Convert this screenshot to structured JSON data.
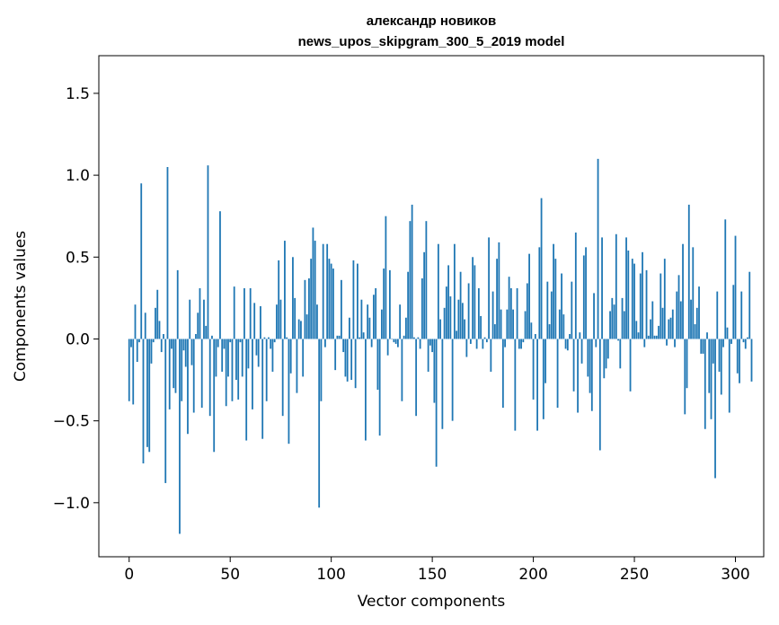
{
  "chart_data": {
    "type": "bar",
    "title": "александр новиков",
    "subtitle": "news_upos_skipgram_300_5_2019 model",
    "xlabel": "Vector components",
    "ylabel": "Components values",
    "xlim": [
      -15,
      314
    ],
    "ylim": [
      -1.33,
      1.73
    ],
    "xticks": [
      0,
      50,
      100,
      150,
      200,
      250,
      300
    ],
    "xtick_labels": [
      "0",
      "50",
      "100",
      "150",
      "200",
      "250",
      "300"
    ],
    "yticks": [
      -1.0,
      -0.5,
      0.0,
      0.5,
      1.0,
      1.5
    ],
    "ytick_labels": [
      "−1.0",
      "−0.5",
      "0.0",
      "0.5",
      "1.0",
      "1.5"
    ],
    "bar_color": "#1f77b4",
    "grid": false,
    "legend": "none",
    "values": [
      -0.38,
      -0.05,
      -0.4,
      0.21,
      -0.14,
      -0.02,
      0.95,
      -0.76,
      0.16,
      -0.66,
      -0.69,
      -0.15,
      -0.02,
      0.19,
      0.3,
      0.11,
      -0.08,
      0.03,
      -0.88,
      1.05,
      -0.43,
      -0.06,
      -0.3,
      -0.33,
      0.42,
      -1.19,
      -0.38,
      -0.07,
      -0.17,
      -0.58,
      0.24,
      -0.16,
      -0.45,
      0.03,
      0.16,
      0.31,
      -0.42,
      0.24,
      0.08,
      1.06,
      -0.47,
      0.02,
      -0.69,
      -0.23,
      -0.05,
      0.78,
      -0.2,
      -0.06,
      -0.41,
      -0.23,
      -0.02,
      -0.38,
      0.32,
      -0.25,
      -0.37,
      -0.02,
      -0.23,
      0.31,
      -0.62,
      -0.18,
      0.31,
      -0.43,
      0.22,
      -0.1,
      -0.17,
      0.2,
      -0.61,
      0.01,
      -0.38,
      0.01,
      -0.06,
      -0.2,
      -0.02,
      0.21,
      0.48,
      0.24,
      -0.47,
      0.6,
      0.01,
      -0.64,
      -0.21,
      0.5,
      0.25,
      -0.33,
      0.12,
      0.11,
      -0.23,
      0.36,
      0.15,
      0.37,
      0.49,
      0.68,
      0.6,
      0.21,
      -1.03,
      -0.38,
      0.58,
      -0.05,
      0.58,
      0.49,
      0.46,
      0.43,
      -0.19,
      0.02,
      0.02,
      0.36,
      -0.08,
      -0.23,
      -0.26,
      0.13,
      -0.25,
      0.48,
      -0.3,
      0.46,
      0.01,
      0.24,
      0.04,
      -0.62,
      0.21,
      0.13,
      -0.05,
      0.27,
      0.31,
      -0.31,
      -0.59,
      0.18,
      0.43,
      0.75,
      -0.1,
      0.42,
      0.0,
      -0.02,
      -0.03,
      -0.05,
      0.21,
      -0.38,
      0.02,
      0.13,
      0.41,
      0.72,
      0.82,
      0.01,
      -0.47,
      0.01,
      -0.06,
      0.37,
      0.53,
      0.72,
      -0.2,
      -0.04,
      -0.08,
      -0.39,
      -0.78,
      0.58,
      0.12,
      -0.55,
      0.19,
      0.32,
      0.45,
      0.26,
      -0.5,
      0.58,
      0.05,
      0.24,
      0.41,
      0.22,
      0.12,
      -0.11,
      0.34,
      -0.03,
      0.5,
      0.45,
      -0.06,
      0.31,
      0.14,
      -0.06,
      0.01,
      -0.02,
      0.62,
      -0.2,
      0.29,
      0.09,
      0.49,
      0.59,
      0.18,
      -0.42,
      -0.05,
      0.18,
      0.38,
      0.31,
      0.18,
      -0.56,
      0.31,
      -0.06,
      -0.06,
      -0.02,
      0.17,
      0.34,
      0.52,
      0.1,
      -0.37,
      0.03,
      -0.56,
      0.56,
      0.86,
      -0.49,
      -0.27,
      0.35,
      0.09,
      0.29,
      0.58,
      0.49,
      -0.42,
      0.18,
      0.4,
      0.15,
      -0.06,
      -0.07,
      0.03,
      0.35,
      -0.32,
      0.65,
      -0.45,
      0.04,
      -0.15,
      0.51,
      0.56,
      -0.23,
      -0.33,
      -0.44,
      0.28,
      -0.05,
      1.1,
      -0.68,
      0.62,
      -0.24,
      -0.18,
      -0.12,
      0.17,
      0.25,
      0.21,
      0.64,
      -0.01,
      -0.18,
      0.25,
      0.17,
      0.62,
      0.54,
      -0.32,
      0.49,
      0.46,
      0.11,
      0.04,
      0.4,
      0.53,
      -0.05,
      0.42,
      0.02,
      0.12,
      0.23,
      0.02,
      0.02,
      0.08,
      0.4,
      0.19,
      0.49,
      -0.04,
      0.12,
      0.13,
      0.18,
      -0.05,
      0.29,
      0.39,
      0.23,
      0.58,
      -0.46,
      -0.3,
      0.82,
      0.24,
      0.56,
      0.09,
      0.19,
      0.32,
      -0.09,
      -0.09,
      -0.55,
      0.04,
      -0.33,
      -0.49,
      -0.15,
      -0.85,
      0.29,
      -0.2,
      -0.34,
      -0.05,
      0.73,
      0.07,
      -0.45,
      -0.03,
      0.33,
      0.63,
      -0.21,
      -0.27,
      0.29,
      -0.02,
      -0.06,
      0.01,
      0.41,
      -0.26
    ]
  }
}
